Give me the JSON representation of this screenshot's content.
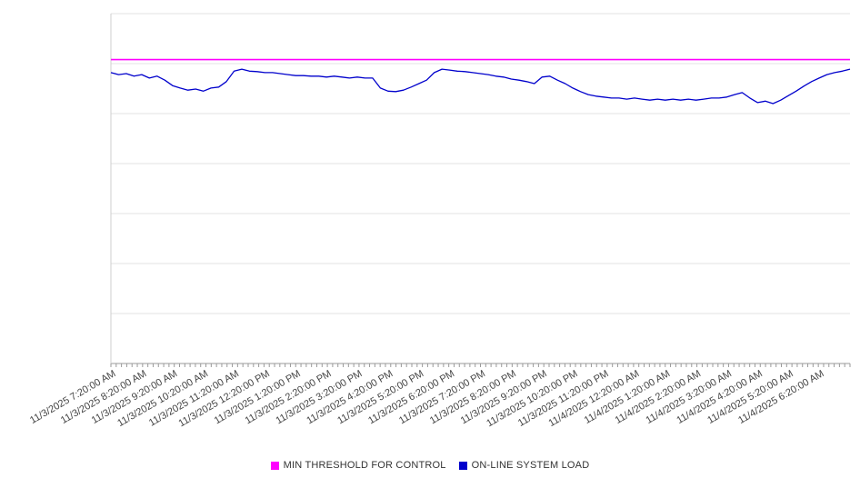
{
  "chart_data": {
    "type": "line",
    "title": "",
    "xlabel": "",
    "ylabel": "",
    "ylim": [
      0,
      7
    ],
    "y_axis_labels_visible": false,
    "gridlines": "horizontal",
    "legend_position": "bottom-center",
    "x_minor_tick_count": 140,
    "x_labels": [
      "11/3/2025 7:20:00 AM",
      "11/3/2025 8:20:00 AM",
      "11/3/2025 9:20:00 AM",
      "11/3/2025 10:20:00 AM",
      "11/3/2025 11:20:00 AM",
      "11/3/2025 12:20:00 PM",
      "11/3/2025 1:20:00 PM",
      "11/3/2025 2:20:00 PM",
      "11/3/2025 3:20:00 PM",
      "11/3/2025 4:20:00 PM",
      "11/3/2025 5:20:00 PM",
      "11/3/2025 6:20:00 PM",
      "11/3/2025 7:20:00 PM",
      "11/3/2025 8:20:00 PM",
      "11/3/2025 9:20:00 PM",
      "11/3/2025 10:20:00 PM",
      "11/3/2025 11:20:00 PM",
      "11/4/2025 12:20:00 AM",
      "11/4/2025 1:20:00 AM",
      "11/4/2025 2:20:00 AM",
      "11/4/2025 3:20:00 AM",
      "11/4/2025 4:20:00 AM",
      "11/4/2025 5:20:00 AM",
      "11/4/2025 6:20:00 AM"
    ],
    "series": [
      {
        "name": "MIN THRESHOLD FOR CONTROL",
        "color": "#ff00ff",
        "style": "horizontal-threshold",
        "value": 6.08
      },
      {
        "name": "ON-LINE SYSTEM LOAD",
        "color": "#0000cc",
        "style": "line",
        "values": [
          5.82,
          5.78,
          5.8,
          5.75,
          5.78,
          5.71,
          5.75,
          5.67,
          5.56,
          5.51,
          5.47,
          5.49,
          5.45,
          5.51,
          5.53,
          5.64,
          5.85,
          5.89,
          5.85,
          5.84,
          5.82,
          5.82,
          5.8,
          5.78,
          5.76,
          5.76,
          5.75,
          5.75,
          5.73,
          5.75,
          5.73,
          5.71,
          5.73,
          5.71,
          5.71,
          5.51,
          5.45,
          5.44,
          5.47,
          5.53,
          5.6,
          5.67,
          5.82,
          5.89,
          5.87,
          5.85,
          5.84,
          5.82,
          5.8,
          5.78,
          5.75,
          5.73,
          5.69,
          5.67,
          5.64,
          5.6,
          5.73,
          5.75,
          5.67,
          5.6,
          5.51,
          5.44,
          5.38,
          5.35,
          5.33,
          5.31,
          5.31,
          5.29,
          5.31,
          5.29,
          5.27,
          5.29,
          5.27,
          5.29,
          5.27,
          5.29,
          5.27,
          5.29,
          5.31,
          5.31,
          5.33,
          5.38,
          5.42,
          5.31,
          5.22,
          5.25,
          5.2,
          5.27,
          5.36,
          5.45,
          5.55,
          5.64,
          5.71,
          5.78,
          5.82,
          5.85,
          5.89
        ]
      }
    ],
    "note": "y-axis has no tick labels; values estimated in gridline units (0-7, seven horizontal bands)"
  }
}
